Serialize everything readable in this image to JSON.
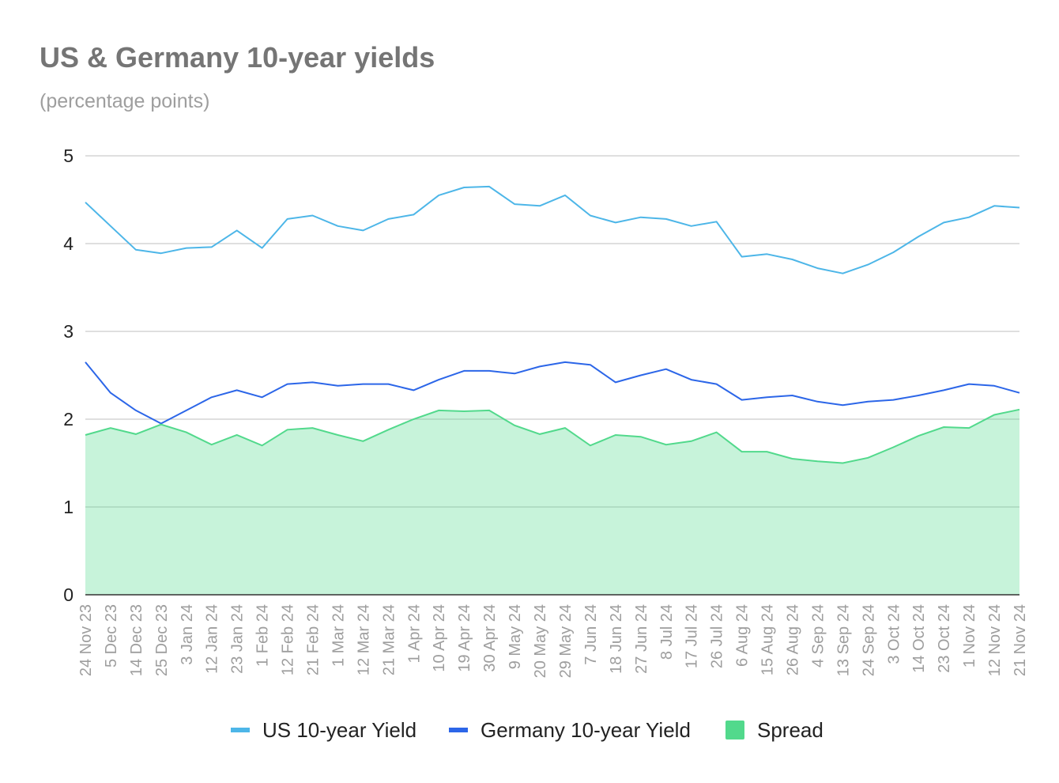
{
  "chart_data": {
    "type": "line",
    "title": "US & Germany 10-year yields",
    "subtitle": "(percentage points)",
    "xlabel": "",
    "ylabel": "",
    "ylim": [
      0,
      5
    ],
    "yticks": [
      "0",
      "1",
      "2",
      "3",
      "4",
      "5"
    ],
    "grid": true,
    "legend_position": "bottom",
    "categories": [
      "24 Nov 23",
      "5 Dec 23",
      "14 Dec 23",
      "25 Dec 23",
      "3 Jan 24",
      "12 Jan 24",
      "23 Jan 24",
      "1 Feb 24",
      "12 Feb 24",
      "21 Feb 24",
      "1 Mar 24",
      "12 Mar 24",
      "21 Mar 24",
      "1 Apr 24",
      "10 Apr 24",
      "19 Apr 24",
      "30 Apr 24",
      "9 May 24",
      "20 May 24",
      "29 May 24",
      "7 Jun 24",
      "18 Jun 24",
      "27 Jun 24",
      "8 Jul 24",
      "17 Jul 24",
      "26 Jul 24",
      "6 Aug 24",
      "15 Aug 24",
      "26 Aug 24",
      "4 Sep 24",
      "13 Sep 24",
      "24 Sep 24",
      "3 Oct 24",
      "14 Oct 24",
      "23 Oct 24",
      "1 Nov 24",
      "12 Nov 24",
      "21 Nov 24"
    ],
    "series": [
      {
        "name": "US 10-year Yield",
        "type": "line",
        "color": "#4db6e8",
        "values": [
          4.47,
          4.2,
          3.93,
          3.89,
          3.95,
          3.96,
          4.15,
          3.95,
          4.28,
          4.32,
          4.2,
          4.15,
          4.28,
          4.33,
          4.55,
          4.64,
          4.65,
          4.45,
          4.43,
          4.55,
          4.32,
          4.24,
          4.3,
          4.28,
          4.2,
          4.25,
          3.85,
          3.88,
          3.82,
          3.72,
          3.66,
          3.76,
          3.9,
          4.08,
          4.24,
          4.3,
          4.43,
          4.41
        ]
      },
      {
        "name": "Germany 10-year Yield",
        "type": "line",
        "color": "#2c66e8",
        "values": [
          2.65,
          2.3,
          2.1,
          1.95,
          2.1,
          2.25,
          2.33,
          2.25,
          2.4,
          2.42,
          2.38,
          2.4,
          2.4,
          2.33,
          2.45,
          2.55,
          2.55,
          2.52,
          2.6,
          2.65,
          2.62,
          2.42,
          2.5,
          2.57,
          2.45,
          2.4,
          2.22,
          2.25,
          2.27,
          2.2,
          2.16,
          2.2,
          2.22,
          2.27,
          2.33,
          2.4,
          2.38,
          2.3
        ]
      },
      {
        "name": "Spread",
        "type": "area",
        "color": "#52d98c",
        "values": [
          1.82,
          1.9,
          1.83,
          1.94,
          1.85,
          1.71,
          1.82,
          1.7,
          1.88,
          1.9,
          1.82,
          1.75,
          1.88,
          2.0,
          2.1,
          2.09,
          2.1,
          1.93,
          1.83,
          1.9,
          1.7,
          1.82,
          1.8,
          1.71,
          1.75,
          1.85,
          1.63,
          1.63,
          1.55,
          1.52,
          1.5,
          1.56,
          1.68,
          1.81,
          1.91,
          1.9,
          2.05,
          2.11
        ]
      }
    ]
  }
}
